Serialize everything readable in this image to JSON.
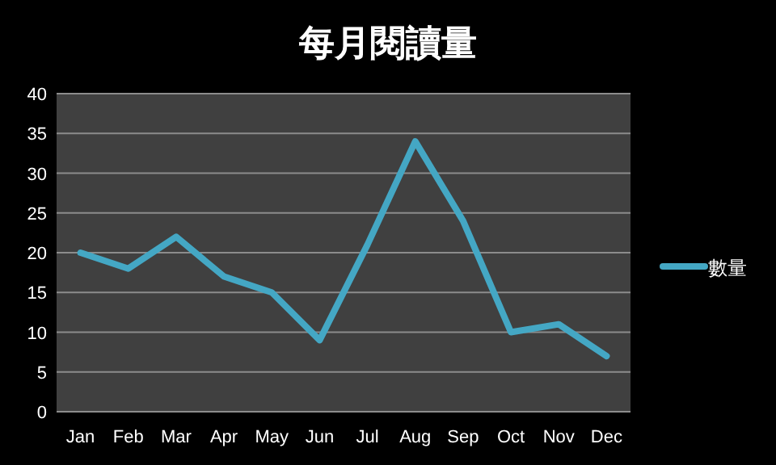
{
  "chart_data": {
    "type": "line",
    "title": "每月閱讀量",
    "categories": [
      "Jan",
      "Feb",
      "Mar",
      "Apr",
      "May",
      "Jun",
      "Jul",
      "Aug",
      "Sep",
      "Oct",
      "Nov",
      "Dec"
    ],
    "series": [
      {
        "name": "數量",
        "color": "#44a7c4",
        "values": [
          20,
          18,
          22,
          17,
          15,
          9,
          21,
          34,
          24,
          10,
          11,
          7
        ]
      }
    ],
    "ylim": [
      0,
      40
    ],
    "yticks": [
      0,
      5,
      10,
      15,
      20,
      25,
      30,
      35,
      40
    ],
    "grid": "y",
    "legend": "right",
    "marker": "none",
    "line_style": "solid"
  }
}
